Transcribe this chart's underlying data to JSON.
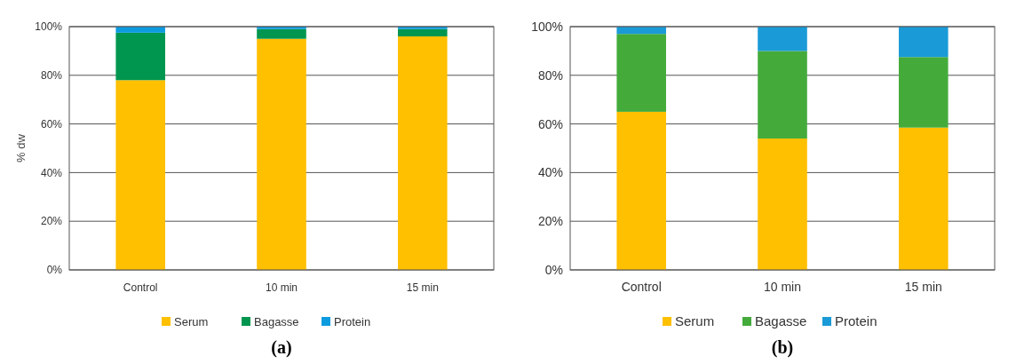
{
  "chart_data": [
    {
      "type": "bar",
      "title": "(a)",
      "ylabel": "% dw",
      "stacked": true,
      "categories": [
        "Control",
        "10 min",
        "15 min"
      ],
      "series": [
        {
          "name": "Serum",
          "color": "#ffc000",
          "values": [
            78,
            95,
            96
          ]
        },
        {
          "name": "Bagasse",
          "color": "#00964f",
          "values": [
            19.5,
            4,
            3
          ]
        },
        {
          "name": "Protein",
          "color": "#0d9be0",
          "values": [
            2.5,
            1,
            1
          ]
        }
      ],
      "ylim": [
        0,
        100
      ],
      "yticks": [
        {
          "value": 0,
          "label": "0%"
        },
        {
          "value": 20,
          "label": "20%"
        },
        {
          "value": 40,
          "label": "40%"
        },
        {
          "value": 60,
          "label": "60%"
        },
        {
          "value": 80,
          "label": "80%"
        },
        {
          "value": 100,
          "label": "100%"
        }
      ],
      "grid": "y",
      "legend": "bottom"
    },
    {
      "type": "bar",
      "title": "(b)",
      "stacked": true,
      "categories": [
        "Control",
        "10 min",
        "15 min"
      ],
      "series": [
        {
          "name": "Serum",
          "color": "#ffc000",
          "values": [
            65,
            54,
            58.5
          ]
        },
        {
          "name": "Bagasse",
          "color": "#44ab3b",
          "values": [
            32,
            36,
            29
          ]
        },
        {
          "name": "Protein",
          "color": "#1a9bd7",
          "values": [
            3,
            10,
            12.5
          ]
        }
      ],
      "ylim": [
        0,
        100
      ],
      "yticks": [
        {
          "value": 0,
          "label": "0%"
        },
        {
          "value": 20,
          "label": "20%"
        },
        {
          "value": 40,
          "label": "40%"
        },
        {
          "value": 60,
          "label": "60%"
        },
        {
          "value": 80,
          "label": "80%"
        },
        {
          "value": 100,
          "label": "100%"
        }
      ],
      "grid": "y",
      "legend": "bottom"
    }
  ]
}
